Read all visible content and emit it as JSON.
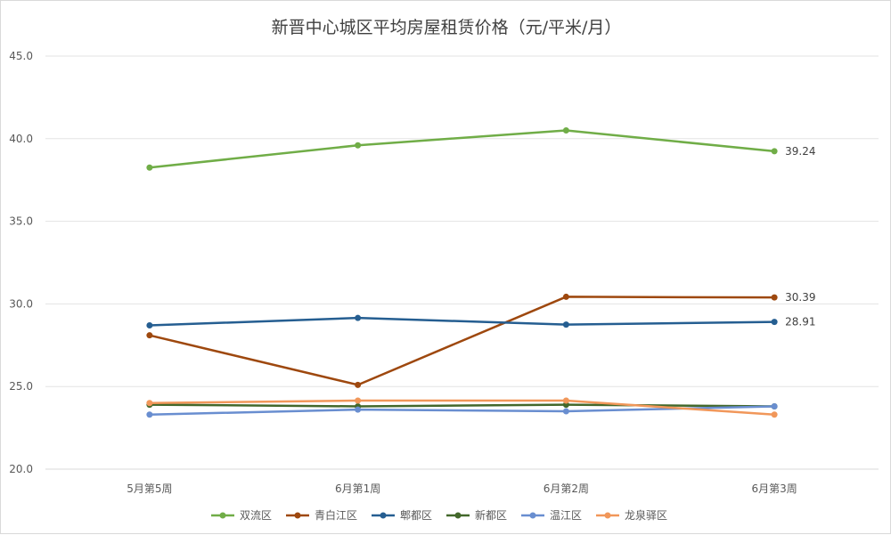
{
  "chart_data": {
    "type": "line",
    "title": "新晋中心城区平均房屋租赁价格（元/平米/月）",
    "xlabel": "",
    "ylabel": "",
    "categories": [
      "5月第5周",
      "6月第1周",
      "6月第2周",
      "6月第3周"
    ],
    "ylim": [
      20.0,
      45.0
    ],
    "yticks": [
      "20.0",
      "25.0",
      "30.0",
      "35.0",
      "40.0",
      "45.0"
    ],
    "grid": true,
    "legend_position": "bottom",
    "series": [
      {
        "name": "双流区",
        "color": "#70ad47",
        "values": [
          38.25,
          39.6,
          40.5,
          39.24
        ]
      },
      {
        "name": "青白江区",
        "color": "#9e480e",
        "values": [
          28.1,
          25.1,
          30.43,
          30.39
        ]
      },
      {
        "name": "郫都区",
        "color": "#255e91",
        "values": [
          28.7,
          29.15,
          28.75,
          28.91
        ]
      },
      {
        "name": "新都区",
        "color": "#43682b",
        "values": [
          23.9,
          23.8,
          23.9,
          23.8
        ]
      },
      {
        "name": "温江区",
        "color": "#698ed0",
        "values": [
          23.3,
          23.6,
          23.5,
          23.8
        ]
      },
      {
        "name": "龙泉驿区",
        "color": "#f1975a",
        "values": [
          24.0,
          24.15,
          24.15,
          23.3
        ]
      }
    ],
    "data_labels": [
      {
        "series": "双流区",
        "category": "6月第3周",
        "text": "39.24"
      },
      {
        "series": "青白江区",
        "category": "6月第3周",
        "text": "30.39"
      },
      {
        "series": "郫都区",
        "category": "6月第3周",
        "text": "28.91"
      }
    ]
  }
}
